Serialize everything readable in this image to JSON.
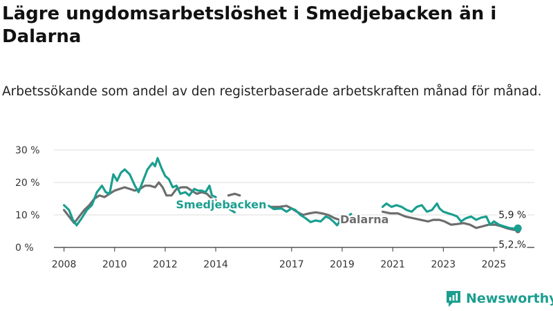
{
  "title": "Lägre ungdomsarbetslöshet i Smedjebacken än i Dalarna",
  "subtitle": "Arbetssökande som andel av den registerbaserade arbetskraften månad för månad.",
  "brand": "Newsworthy",
  "colors": {
    "smedjebacken": "#1a9e8f",
    "dalarna": "#6d6d6d",
    "grid": "#dddddd",
    "axis": "#333333"
  },
  "chart_data": {
    "type": "line",
    "title": "Lägre ungdomsarbetslöshet i Smedjebacken än i Dalarna",
    "xlabel": "",
    "ylabel": "",
    "xlim": [
      2007.6,
      2026.6
    ],
    "ylim": [
      0,
      30
    ],
    "grid": true,
    "y_ticks": [
      0,
      10,
      20,
      30
    ],
    "y_tick_labels": [
      "0 %",
      "10 %",
      "20 %",
      "30 %"
    ],
    "x_ticks": [
      2008,
      2010,
      2012,
      2014,
      2017,
      2019,
      2021,
      2023,
      2025
    ],
    "x_tick_labels": [
      "2008",
      "2010",
      "2012",
      "2014",
      "2017",
      "2019",
      "2021",
      "2023",
      "2025"
    ],
    "series": [
      {
        "name": "Smedjebacken",
        "label": "Smedjebacken",
        "end_label": "5,9 %",
        "segments": [
          [
            [
              2008.0,
              13
            ],
            [
              2008.2,
              11.5
            ],
            [
              2008.35,
              8.5
            ],
            [
              2008.5,
              6.8
            ],
            [
              2008.7,
              9
            ],
            [
              2008.9,
              11.5
            ],
            [
              2009.1,
              13
            ],
            [
              2009.3,
              17
            ],
            [
              2009.5,
              19
            ],
            [
              2009.65,
              17
            ],
            [
              2009.8,
              16.5
            ],
            [
              2009.95,
              22.5
            ],
            [
              2010.1,
              20.5
            ],
            [
              2010.25,
              23
            ],
            [
              2010.4,
              24
            ],
            [
              2010.6,
              22.5
            ],
            [
              2010.8,
              19
            ],
            [
              2010.95,
              17
            ],
            [
              2011.1,
              20
            ],
            [
              2011.3,
              24
            ],
            [
              2011.5,
              26
            ],
            [
              2011.6,
              25
            ],
            [
              2011.7,
              27.5
            ],
            [
              2011.85,
              24.5
            ],
            [
              2012.0,
              22
            ],
            [
              2012.15,
              21
            ],
            [
              2012.3,
              18.5
            ],
            [
              2012.45,
              19
            ],
            [
              2012.6,
              16.5
            ],
            [
              2012.8,
              17
            ],
            [
              2012.95,
              16
            ],
            [
              2013.15,
              18
            ],
            [
              2013.3,
              17.5
            ],
            [
              2013.45,
              17.5
            ],
            [
              2013.6,
              17
            ],
            [
              2013.75,
              19
            ],
            [
              2013.85,
              16
            ],
            [
              2014.0,
              15.5
            ]
          ],
          [
            [
              2014.5,
              12
            ],
            [
              2014.75,
              10.8
            ]
          ],
          [
            [
              2015.5,
              13.5
            ],
            [
              2015.6,
              13.2
            ]
          ],
          [
            [
              2016.1,
              12.8
            ],
            [
              2016.3,
              11.8
            ],
            [
              2016.6,
              12
            ],
            [
              2016.8,
              11
            ],
            [
              2017.0,
              12
            ],
            [
              2017.15,
              11.5
            ],
            [
              2017.35,
              10
            ],
            [
              2017.55,
              9
            ],
            [
              2017.75,
              7.8
            ],
            [
              2017.95,
              8.3
            ],
            [
              2018.15,
              8
            ],
            [
              2018.35,
              9.5
            ],
            [
              2018.5,
              9
            ],
            [
              2018.65,
              8
            ],
            [
              2018.8,
              6.8
            ],
            [
              2018.9,
              8
            ]
          ],
          [
            [
              2019.3,
              10
            ],
            [
              2019.35,
              10.3
            ]
          ],
          [
            [
              2020.6,
              12.5
            ],
            [
              2020.75,
              13.5
            ],
            [
              2020.95,
              12.5
            ],
            [
              2021.15,
              13
            ],
            [
              2021.35,
              12.5
            ],
            [
              2021.55,
              11.5
            ],
            [
              2021.75,
              11
            ],
            [
              2021.95,
              12.5
            ],
            [
              2022.15,
              13
            ],
            [
              2022.35,
              11
            ],
            [
              2022.55,
              11.5
            ],
            [
              2022.75,
              13.5
            ],
            [
              2022.85,
              12
            ],
            [
              2023.0,
              11
            ],
            [
              2023.2,
              10.5
            ],
            [
              2023.4,
              10
            ],
            [
              2023.55,
              9.5
            ],
            [
              2023.7,
              8
            ],
            [
              2023.9,
              9
            ],
            [
              2024.1,
              9.5
            ],
            [
              2024.3,
              8.5
            ],
            [
              2024.5,
              9.2
            ],
            [
              2024.7,
              9.5
            ],
            [
              2024.85,
              7
            ],
            [
              2025.0,
              8
            ],
            [
              2025.2,
              7
            ],
            [
              2025.4,
              6.5
            ],
            [
              2025.6,
              6
            ],
            [
              2025.8,
              5.8
            ],
            [
              2025.95,
              5.9
            ]
          ]
        ]
      },
      {
        "name": "Dalarna",
        "label": "Dalarna",
        "end_label": "5,2 %",
        "segments": [
          [
            [
              2008.0,
              11.5
            ],
            [
              2008.2,
              9.5
            ],
            [
              2008.4,
              7.5
            ],
            [
              2008.6,
              9.5
            ],
            [
              2008.8,
              11.5
            ],
            [
              2009.0,
              13
            ],
            [
              2009.2,
              15
            ],
            [
              2009.4,
              16
            ],
            [
              2009.6,
              15.5
            ],
            [
              2009.8,
              16.5
            ],
            [
              2010.0,
              17.5
            ],
            [
              2010.2,
              18
            ],
            [
              2010.4,
              18.5
            ],
            [
              2010.6,
              18
            ],
            [
              2010.8,
              17.5
            ],
            [
              2011.0,
              18
            ],
            [
              2011.2,
              19
            ],
            [
              2011.4,
              19
            ],
            [
              2011.6,
              18.5
            ],
            [
              2011.75,
              20
            ],
            [
              2011.9,
              18.5
            ],
            [
              2012.05,
              16
            ],
            [
              2012.25,
              16
            ],
            [
              2012.45,
              18
            ],
            [
              2012.65,
              18.5
            ],
            [
              2012.85,
              18.5
            ],
            [
              2013.05,
              17.5
            ],
            [
              2013.25,
              16.5
            ],
            [
              2013.45,
              17
            ],
            [
              2013.65,
              16.5
            ],
            [
              2013.85,
              15
            ],
            [
              2014.0,
              14.5
            ]
          ],
          [
            [
              2014.5,
              16
            ],
            [
              2014.75,
              16.5
            ],
            [
              2014.95,
              16
            ]
          ],
          [
            [
              2016.2,
              12.5
            ],
            [
              2016.5,
              12.5
            ],
            [
              2016.8,
              12.8
            ],
            [
              2017.0,
              12
            ],
            [
              2017.2,
              11
            ],
            [
              2017.45,
              10
            ],
            [
              2017.7,
              10.5
            ],
            [
              2017.95,
              10.8
            ],
            [
              2018.2,
              10.5
            ],
            [
              2018.45,
              10
            ],
            [
              2018.7,
              9
            ],
            [
              2018.9,
              8.5
            ]
          ],
          [
            [
              2020.6,
              11
            ],
            [
              2020.9,
              10.5
            ],
            [
              2021.2,
              10.5
            ],
            [
              2021.5,
              9.5
            ],
            [
              2021.8,
              9
            ],
            [
              2022.1,
              8.5
            ],
            [
              2022.4,
              8
            ],
            [
              2022.6,
              8.5
            ],
            [
              2022.85,
              8.5
            ],
            [
              2023.05,
              8
            ],
            [
              2023.3,
              7
            ],
            [
              2023.55,
              7.2
            ],
            [
              2023.8,
              7.5
            ],
            [
              2024.05,
              7
            ],
            [
              2024.3,
              6
            ],
            [
              2024.55,
              6.5
            ],
            [
              2024.8,
              7
            ],
            [
              2025.05,
              7
            ],
            [
              2025.3,
              6.5
            ],
            [
              2025.55,
              5.8
            ],
            [
              2025.8,
              5.4
            ],
            [
              2025.95,
              5.2
            ]
          ]
        ]
      }
    ]
  }
}
